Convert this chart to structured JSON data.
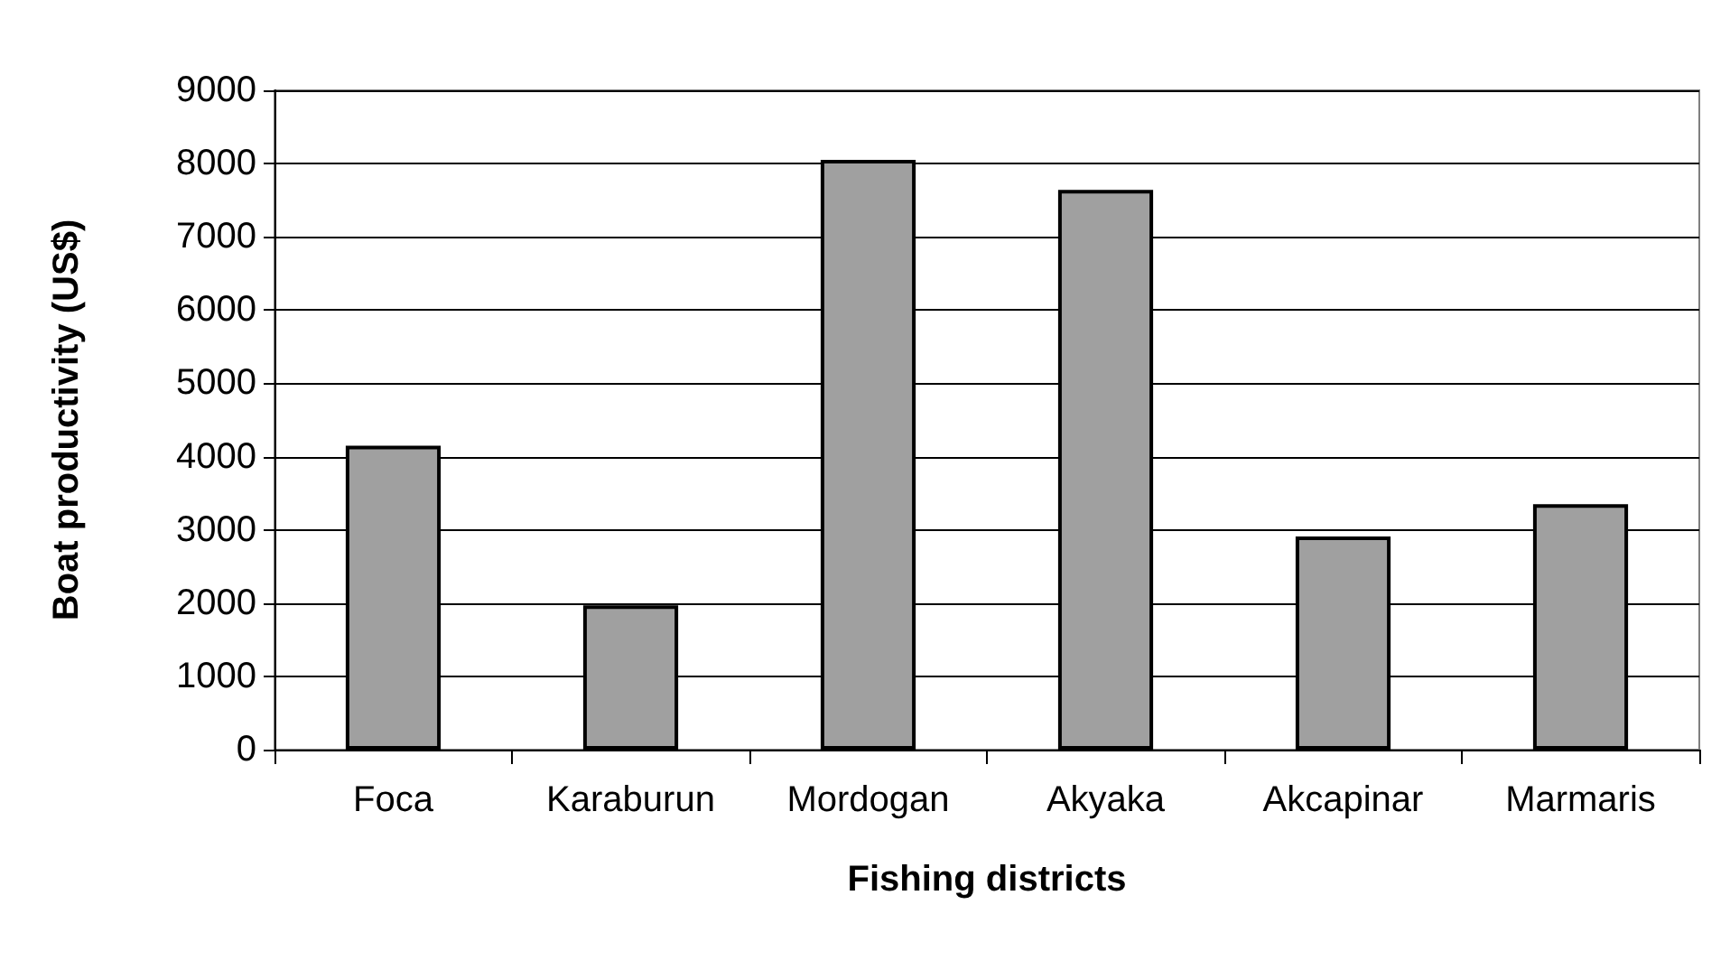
{
  "chart_data": {
    "type": "bar",
    "xlabel": "Fishing districts",
    "ylabel": "Boat productivity (US$)",
    "categories": [
      "Foca",
      "Karaburun",
      "Mordogan",
      "Akyaka",
      "Akcapinar",
      "Marmaris"
    ],
    "values": [
      4150,
      1970,
      8050,
      7640,
      2910,
      3350
    ],
    "color": "#a0a0a0",
    "ylim": [
      0,
      9000
    ],
    "yticks": [
      0,
      1000,
      2000,
      3000,
      4000,
      5000,
      6000,
      7000,
      8000,
      9000
    ],
    "grid": "y"
  }
}
